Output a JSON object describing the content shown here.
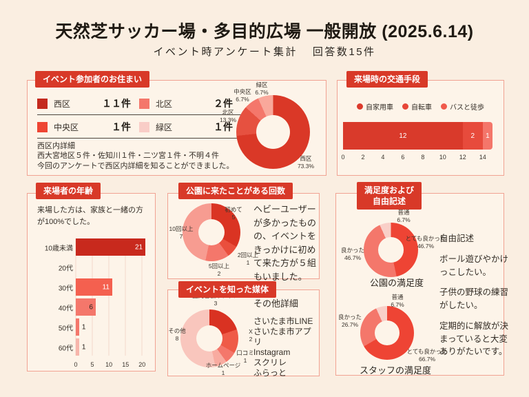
{
  "page": {
    "title": "天然芝サッカー場・多目的広場 一般開放 (2025.6.14)",
    "subtitle": "イベント時アンケート集計",
    "subtitle_count": "回答数15件"
  },
  "panels": {
    "residence": {
      "header": "イベント参加者のお住まい",
      "legend": [
        {
          "label": "西区",
          "count": "１１件",
          "color": "#c42a1e"
        },
        {
          "label": "北区",
          "count": "２件",
          "color": "#f4776b"
        },
        {
          "label": "中央区",
          "count": "１件",
          "color": "#ee4533"
        },
        {
          "label": "緑区",
          "count": "１件",
          "color": "#f9cdc7"
        }
      ],
      "note_title": "西区内詳細",
      "note_line1": "西大宮地区５件・佐知川１件・二ツ宮１件・不明４件",
      "note_line2": "今回のアンケートで西区内詳細を知ることができました。"
    },
    "transport": {
      "header": "来場時の交通手段"
    },
    "age": {
      "header": "来場者の年齢",
      "note": "来場した方は、家族と一緒の方が100%でした。"
    },
    "visits": {
      "header": "公園に来たことがある回数",
      "note": "ヘビーユーザーが多かったものの、イベントをきっかけに初めて来た方が５組もいました。"
    },
    "media": {
      "header": "イベントを知った媒体",
      "note_title": "その他詳細",
      "note_lines": [
        "さいたま市LINE",
        "さいたま市アプリ",
        "Instagram",
        "スクリレ",
        "ふらっと"
      ]
    },
    "satisfaction": {
      "header_line1": "満足度および",
      "header_line2": "自由記述",
      "free_title": "自由記述",
      "free_items": [
        "ボール遊びやかけっこしたい。",
        "子供の野球の練習がしたい。",
        "定期的に解放が決まっていると大変ありがたいです。"
      ]
    }
  },
  "chart_data": [
    {
      "id": "residence",
      "type": "pie",
      "title": "イベント参加者のお住まい",
      "labels": [
        "西区",
        "北区",
        "中央区",
        "緑区"
      ],
      "values": [
        11,
        2,
        1,
        1
      ],
      "percent_labels": [
        "73.3%",
        "13.3%",
        "6.7%",
        "6.7%"
      ],
      "colors": [
        "#da3827",
        "#e65140",
        "#f4776b",
        "#f9a89b"
      ]
    },
    {
      "id": "transport",
      "type": "bar",
      "orientation": "horizontal-stacked",
      "title": "来場時の交通手段",
      "categories": [
        "自家用車",
        "自転車",
        "バスと徒歩"
      ],
      "values": [
        12,
        2,
        1
      ],
      "colors": [
        "#d93a2b",
        "#e74b3c",
        "#f4766a"
      ],
      "legend_colors": [
        "#dc3a2c",
        "#e74638",
        "#f05a4c"
      ],
      "axis_max": 15.4,
      "ticks": [
        0,
        2,
        4,
        6,
        8,
        10,
        12,
        14
      ]
    },
    {
      "id": "age",
      "type": "bar",
      "orientation": "horizontal",
      "title": "来場者の年齢",
      "categories": [
        "10歳未満",
        "20代",
        "30代",
        "40代",
        "50代",
        "60代"
      ],
      "values": [
        21,
        0,
        11,
        6,
        1,
        1
      ],
      "colors": [
        "#c8291d",
        "#c8291d",
        "#f4604f",
        "#f4776b",
        "#f4776b",
        "#f7b5ab"
      ],
      "axis_max": 21.6,
      "ticks": [
        0,
        5,
        10,
        15,
        20
      ]
    },
    {
      "id": "visits",
      "type": "pie",
      "title": "公園に来たことがある回数",
      "labels": [
        "初めて",
        "2回以上",
        "5回以上",
        "10回以上"
      ],
      "values": [
        5,
        1,
        2,
        7
      ],
      "colors": [
        "#da3423",
        "#ea4f3d",
        "#f4776b",
        "#f79c91"
      ]
    },
    {
      "id": "media",
      "type": "pie",
      "title": "イベントを知った媒体",
      "labels": [
        "園内看板やチラシ",
        "X",
        "口コミ",
        "ホームページ",
        "その他"
      ],
      "values": [
        3,
        2,
        1,
        1,
        8
      ],
      "colors": [
        "#d93222",
        "#ef5b48",
        "#f4776b",
        "#f8aba0",
        "#f9c6bd"
      ]
    },
    {
      "id": "park_satisfaction",
      "type": "pie",
      "title": "公園の満足度",
      "labels": [
        "とても良かった",
        "良かった",
        "普通"
      ],
      "values": [
        46.7,
        46.7,
        6.7
      ],
      "percent_labels": [
        "46.7%",
        "46.7%",
        "6.7%"
      ],
      "colors": [
        "#ee4434",
        "#f4776b",
        "#f9cfc8"
      ]
    },
    {
      "id": "staff_satisfaction",
      "type": "pie",
      "title": "スタッフの満足度",
      "labels": [
        "とても良かった",
        "良かった",
        "普通"
      ],
      "values": [
        66.7,
        26.7,
        6.7
      ],
      "percent_labels": [
        "66.7%",
        "26.7%",
        "6.7%"
      ],
      "colors": [
        "#ee4434",
        "#f4776b",
        "#f9cfc8"
      ]
    }
  ]
}
